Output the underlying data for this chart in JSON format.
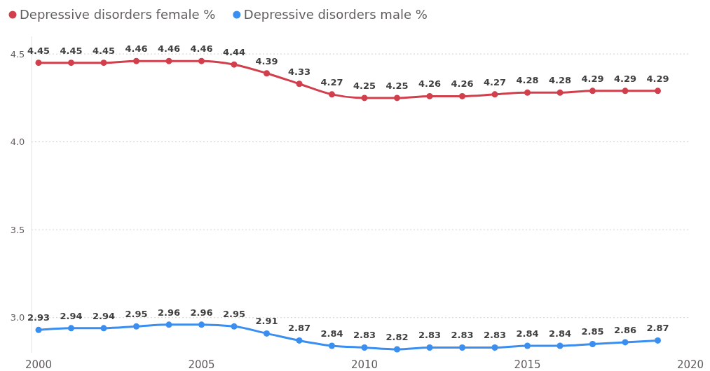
{
  "chart_data": {
    "type": "line",
    "x": [
      2000,
      2001,
      2002,
      2003,
      2004,
      2005,
      2006,
      2007,
      2008,
      2009,
      2010,
      2011,
      2012,
      2013,
      2014,
      2015,
      2016,
      2017,
      2018,
      2019
    ],
    "series": [
      {
        "name": "Depressive disorders female %",
        "color": "#d13f4c",
        "values": [
          4.45,
          4.45,
          4.45,
          4.46,
          4.46,
          4.46,
          4.44,
          4.39,
          4.33,
          4.27,
          4.25,
          4.25,
          4.26,
          4.26,
          4.27,
          4.28,
          4.28,
          4.29,
          4.29,
          4.29
        ]
      },
      {
        "name": "Depressive disorders male %",
        "color": "#3a8ef0",
        "values": [
          2.93,
          2.94,
          2.94,
          2.95,
          2.96,
          2.96,
          2.95,
          2.91,
          2.87,
          2.84,
          2.83,
          2.82,
          2.83,
          2.83,
          2.83,
          2.84,
          2.84,
          2.85,
          2.86,
          2.87
        ]
      }
    ],
    "xlim": [
      2000,
      2020
    ],
    "xticks": [
      2000,
      2005,
      2010,
      2015,
      2020
    ],
    "ylim": [
      2.8,
      4.6
    ],
    "yticks": [
      {
        "value": 3,
        "label": "3.0"
      },
      {
        "value": 3.5,
        "label": "3.5"
      },
      {
        "value": 4,
        "label": "4.0"
      },
      {
        "value": 4.5,
        "label": "4.5"
      }
    ],
    "grid": "y",
    "legend": "top left",
    "marker": "circle",
    "line_style": "solid",
    "data_labels": true
  }
}
